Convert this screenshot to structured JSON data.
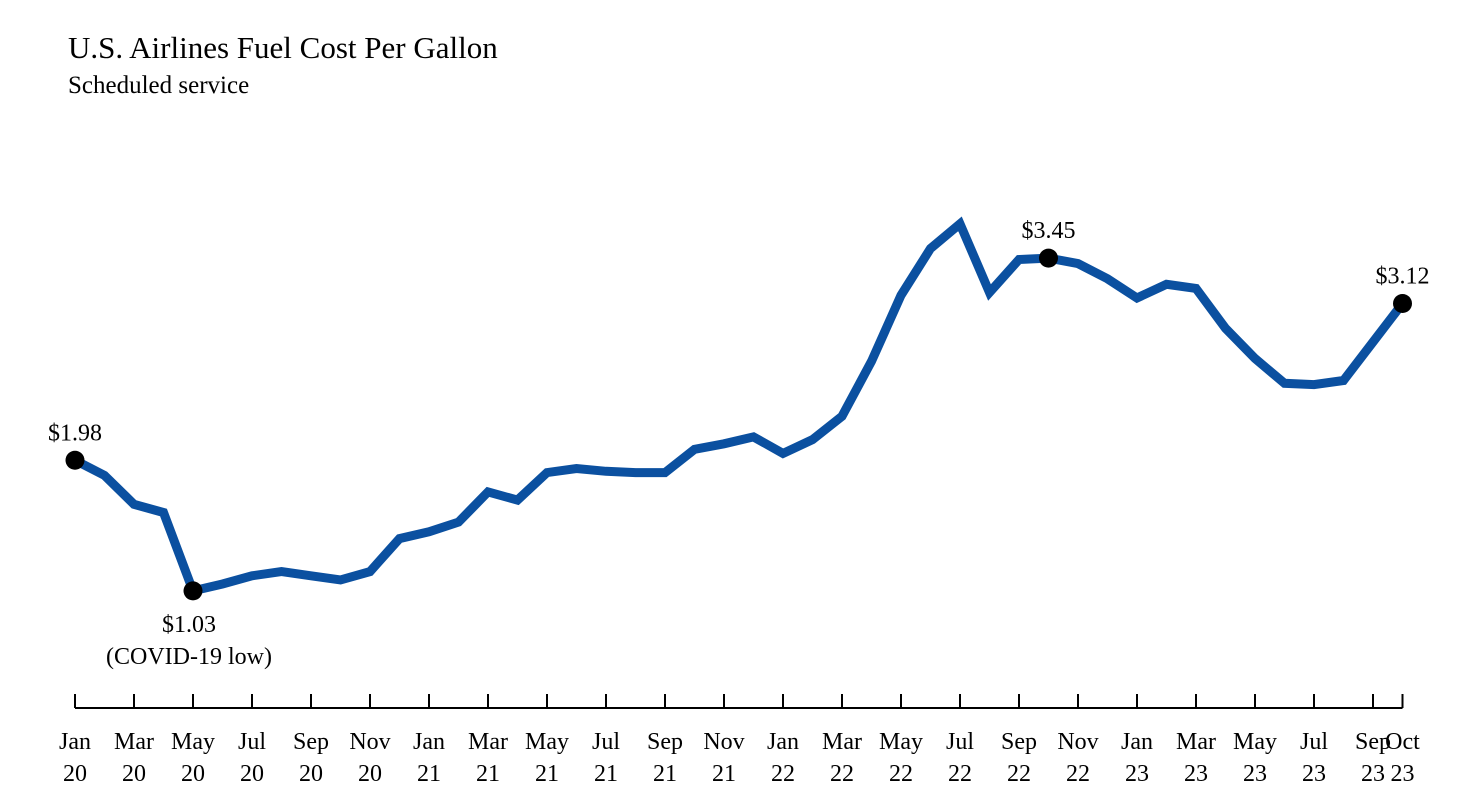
{
  "chart_data": {
    "type": "line",
    "title": "U.S. Airlines Fuel Cost Per Gallon",
    "subtitle": "Scheduled service",
    "xlabel": "",
    "ylabel": "",
    "ylim": [
      0.4,
      4.2
    ],
    "grid": false,
    "line_color": "#0b50a0",
    "marker_color": "#000000",
    "series": [
      {
        "name": "Fuel cost per gallon ($)",
        "x": [
          "Jan 20",
          "Feb 20",
          "Mar 20",
          "Apr 20",
          "May 20",
          "Jun 20",
          "Jul 20",
          "Aug 20",
          "Sep 20",
          "Oct 20",
          "Nov 20",
          "Dec 20",
          "Jan 21",
          "Feb 21",
          "Mar 21",
          "Apr 21",
          "May 21",
          "Jun 21",
          "Jul 21",
          "Aug 21",
          "Sep 21",
          "Oct 21",
          "Nov 21",
          "Dec 21",
          "Jan 22",
          "Feb 22",
          "Mar 22",
          "Apr 22",
          "May 22",
          "Jun 22",
          "Jul 22",
          "Aug 22",
          "Sep 22",
          "Oct 22",
          "Nov 22",
          "Dec 22",
          "Jan 23",
          "Feb 23",
          "Mar 23",
          "Apr 23",
          "May 23",
          "Jun 23",
          "Jul 23",
          "Aug 23",
          "Sep 23",
          "Oct 23"
        ],
        "values": [
          1.98,
          1.87,
          1.66,
          1.6,
          1.03,
          1.08,
          1.14,
          1.17,
          1.14,
          1.11,
          1.17,
          1.41,
          1.46,
          1.53,
          1.75,
          1.69,
          1.89,
          1.92,
          1.9,
          1.89,
          1.89,
          2.06,
          2.1,
          2.15,
          2.03,
          2.13,
          2.3,
          2.7,
          3.18,
          3.52,
          3.7,
          3.2,
          3.44,
          3.45,
          3.41,
          3.3,
          3.16,
          3.26,
          3.23,
          2.94,
          2.72,
          2.54,
          2.53,
          2.56,
          2.84,
          3.12
        ]
      }
    ],
    "x_ticks": [
      {
        "index": 0,
        "month": "Jan",
        "year": "20"
      },
      {
        "index": 2,
        "month": "Mar",
        "year": "20"
      },
      {
        "index": 4,
        "month": "May",
        "year": "20"
      },
      {
        "index": 6,
        "month": "Jul",
        "year": "20"
      },
      {
        "index": 8,
        "month": "Sep",
        "year": "20"
      },
      {
        "index": 10,
        "month": "Nov",
        "year": "20"
      },
      {
        "index": 12,
        "month": "Jan",
        "year": "21"
      },
      {
        "index": 14,
        "month": "Mar",
        "year": "21"
      },
      {
        "index": 16,
        "month": "May",
        "year": "21"
      },
      {
        "index": 18,
        "month": "Jul",
        "year": "21"
      },
      {
        "index": 20,
        "month": "Sep",
        "year": "21"
      },
      {
        "index": 22,
        "month": "Nov",
        "year": "21"
      },
      {
        "index": 24,
        "month": "Jan",
        "year": "22"
      },
      {
        "index": 26,
        "month": "Mar",
        "year": "22"
      },
      {
        "index": 28,
        "month": "May",
        "year": "22"
      },
      {
        "index": 30,
        "month": "Jul",
        "year": "22"
      },
      {
        "index": 32,
        "month": "Sep",
        "year": "22"
      },
      {
        "index": 34,
        "month": "Nov",
        "year": "22"
      },
      {
        "index": 36,
        "month": "Jan",
        "year": "23"
      },
      {
        "index": 38,
        "month": "Mar",
        "year": "23"
      },
      {
        "index": 40,
        "month": "May",
        "year": "23"
      },
      {
        "index": 42,
        "month": "Jul",
        "year": "23"
      },
      {
        "index": 44,
        "month": "Sep",
        "year": "23"
      },
      {
        "index": 45,
        "month": "Oct",
        "year": "23"
      }
    ],
    "annotations": [
      {
        "index": 0,
        "label": "$1.98",
        "note": "",
        "position": "above"
      },
      {
        "index": 4,
        "label": "$1.03",
        "note": "(COVID-19 low)",
        "position": "below"
      },
      {
        "index": 33,
        "label": "$3.45",
        "note": "",
        "position": "above"
      },
      {
        "index": 45,
        "label": "$3.12",
        "note": "",
        "position": "above"
      }
    ]
  }
}
